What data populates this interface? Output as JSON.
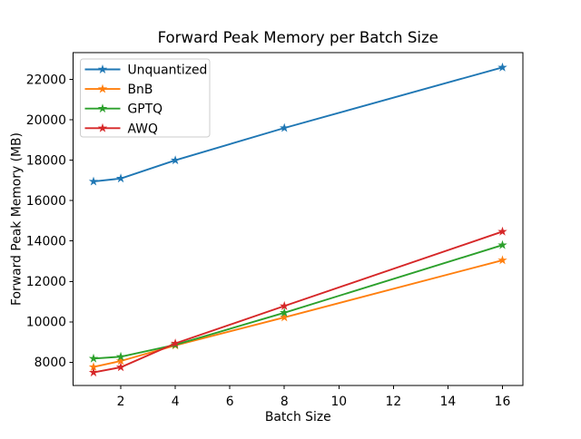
{
  "chart_data": {
    "type": "line",
    "title": "Forward Peak Memory per Batch Size",
    "xlabel": "Batch Size",
    "ylabel": "Forward Peak Memory (MB)",
    "x": [
      1,
      2,
      4,
      8,
      16
    ],
    "series": [
      {
        "name": "Unquantized",
        "color": "#1f77b4",
        "marker": "star",
        "values": [
          16950,
          17100,
          18000,
          19600,
          22600
        ]
      },
      {
        "name": "BnB",
        "color": "#ff7f0e",
        "marker": "star",
        "values": [
          7760,
          8060,
          8830,
          10220,
          13050
        ]
      },
      {
        "name": "GPTQ",
        "color": "#2ca02c",
        "marker": "star",
        "values": [
          8180,
          8270,
          8860,
          10450,
          13800
        ]
      },
      {
        "name": "AWQ",
        "color": "#d62728",
        "marker": "star",
        "values": [
          7490,
          7750,
          8930,
          10780,
          14470
        ]
      }
    ],
    "xticks": [
      2,
      4,
      6,
      8,
      10,
      12,
      14,
      16
    ],
    "yticks": [
      8000,
      10000,
      12000,
      14000,
      16000,
      18000,
      20000,
      22000
    ],
    "xlim": [
      0.25,
      16.75
    ],
    "ylim": [
      6845,
      23334
    ],
    "grid": false,
    "legend": {
      "position": "upper-left"
    },
    "colors": {
      "text": "#000000",
      "spine": "#000000",
      "background": "#ffffff",
      "legend_border": "#cccccc",
      "legend_fill": "#ffffff"
    }
  }
}
